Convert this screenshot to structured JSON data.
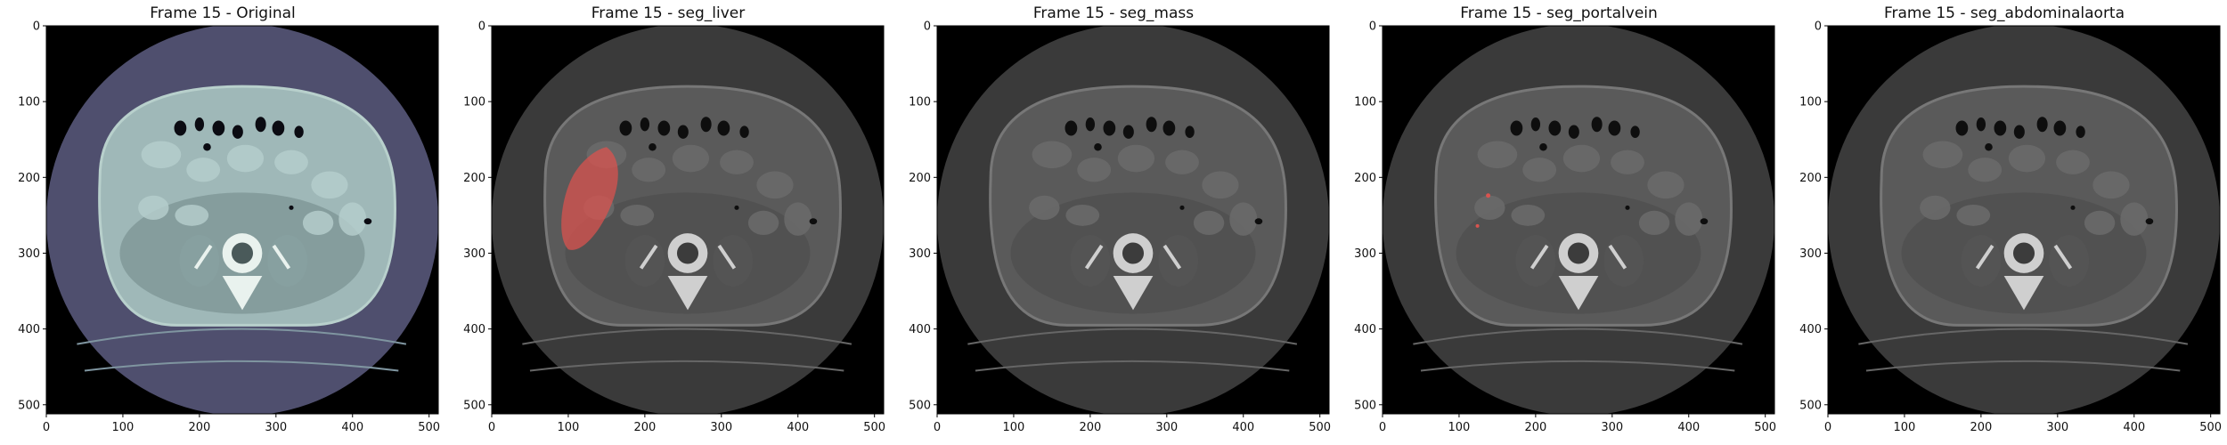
{
  "panels": [
    {
      "title": "Frame 15 - Original",
      "colormap": "bone",
      "mask": "none"
    },
    {
      "title": "Frame 15 - seg_liver",
      "colormap": "gray",
      "mask": "liver"
    },
    {
      "title": "Frame 15 - seg_mass",
      "colormap": "gray",
      "mask": "none"
    },
    {
      "title": "Frame 15 - seg_portalvein",
      "colormap": "gray",
      "mask": "portalvein"
    },
    {
      "title": "Frame 15 - seg_abdominalaorta",
      "colormap": "gray",
      "mask": "none"
    }
  ],
  "axes": {
    "xticks": [
      "0",
      "100",
      "200",
      "300",
      "400",
      "500"
    ],
    "yticks": [
      "0",
      "100",
      "200",
      "300",
      "400",
      "500"
    ]
  },
  "colors": {
    "overlay_red": "#d9534f",
    "bone_background": "#4f4f6e",
    "bone_body": "#9fb8b8"
  }
}
